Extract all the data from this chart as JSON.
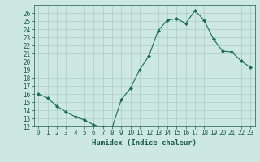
{
  "title": "",
  "xlabel": "Humidex (Indice chaleur)",
  "ylabel": "",
  "x": [
    0,
    1,
    2,
    3,
    4,
    5,
    6,
    7,
    8,
    9,
    10,
    11,
    12,
    13,
    14,
    15,
    16,
    17,
    18,
    19,
    20,
    21,
    22,
    23
  ],
  "y": [
    16,
    15.5,
    14.5,
    13.8,
    13.2,
    12.8,
    12.2,
    11.9,
    11.8,
    15.3,
    16.7,
    19.0,
    20.7,
    23.8,
    25.1,
    25.3,
    24.7,
    26.3,
    25.1,
    22.8,
    21.3,
    21.2,
    20.1,
    19.3
  ],
  "line_color": "#1a6b5a",
  "marker": "D",
  "marker_size": 2,
  "bg_color": "#cce8e0",
  "grid_color": "#aacccc",
  "ylim": [
    12,
    27
  ],
  "xlim": [
    -0.5,
    23.5
  ],
  "yticks": [
    12,
    13,
    14,
    15,
    16,
    17,
    18,
    19,
    20,
    21,
    22,
    23,
    24,
    25,
    26
  ],
  "xticks": [
    0,
    1,
    2,
    3,
    4,
    5,
    6,
    7,
    8,
    9,
    10,
    11,
    12,
    13,
    14,
    15,
    16,
    17,
    18,
    19,
    20,
    21,
    22,
    23
  ],
  "tick_color": "#1a5a50",
  "label_fontsize": 6.5,
  "tick_fontsize": 5.5
}
